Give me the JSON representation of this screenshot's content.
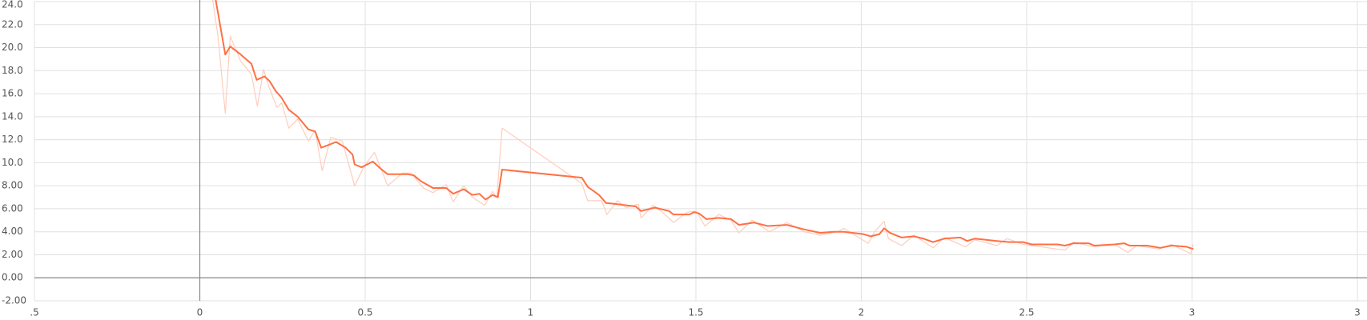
{
  "chart_data": {
    "type": "line",
    "xlim": [
      -0.5,
      3.5
    ],
    "xticks": [
      {
        "value": -0.5,
        "label": ".5"
      },
      0,
      0.5,
      1,
      1.5,
      2,
      2.5,
      3,
      {
        "value": 3.5,
        "label": "3"
      }
    ],
    "ylim": [
      -2,
      24
    ],
    "yticks": [
      {
        "value": 24,
        "label": "24.0"
      },
      {
        "value": 22,
        "label": "22.0"
      },
      {
        "value": 20,
        "label": "20.0"
      },
      {
        "value": 18,
        "label": "18.0"
      },
      {
        "value": 16,
        "label": "16.0"
      },
      {
        "value": 14,
        "label": "14.0"
      },
      {
        "value": 12,
        "label": "12.0"
      },
      {
        "value": 10,
        "label": "10.0"
      },
      {
        "value": 8,
        "label": "8.00"
      },
      {
        "value": 6,
        "label": "6.00"
      },
      {
        "value": 4,
        "label": "4.00"
      },
      {
        "value": 2,
        "label": "2.00"
      },
      {
        "value": 0,
        "label": "0.00"
      },
      {
        "value": -2,
        "label": "-2.00"
      }
    ],
    "grid": true,
    "series": [
      {
        "color": "#ffcdbd",
        "width": 1.2,
        "x": [
          0.032,
          0.055,
          0.077,
          0.092,
          0.124,
          0.156,
          0.174,
          0.193,
          0.209,
          0.233,
          0.248,
          0.269,
          0.296,
          0.328,
          0.349,
          0.37,
          0.396,
          0.431,
          0.468,
          0.497,
          0.528,
          0.568,
          0.613,
          0.639,
          0.676,
          0.705,
          0.745,
          0.766,
          0.798,
          0.824,
          0.861,
          0.885,
          0.898,
          0.914,
          1.155,
          1.173,
          1.215,
          1.231,
          1.263,
          1.289,
          1.326,
          1.334,
          1.371,
          1.403,
          1.432,
          1.474,
          1.501,
          1.527,
          1.569,
          1.606,
          1.63,
          1.67,
          1.722,
          1.775,
          1.828,
          1.876,
          1.929,
          1.947,
          2.021,
          2.04,
          2.069,
          2.082,
          2.122,
          2.159,
          2.217,
          2.251,
          2.315,
          2.344,
          2.41,
          2.441,
          2.489,
          2.616,
          2.642,
          2.7,
          2.766,
          2.806,
          2.832,
          2.899,
          2.938,
          2.996,
          3.004
        ],
        "values": [
          25.5,
          21.0,
          14.3,
          21.0,
          18.8,
          17.7,
          14.9,
          18.1,
          16.6,
          14.8,
          15.2,
          13.0,
          13.8,
          11.9,
          12.8,
          9.3,
          12.2,
          11.9,
          8.0,
          9.7,
          10.9,
          8.0,
          9.1,
          9.1,
          7.8,
          7.4,
          8.1,
          6.6,
          8.0,
          7.0,
          6.3,
          7.5,
          7.0,
          13.0,
          8.2,
          6.7,
          6.7,
          5.5,
          6.7,
          6.1,
          6.4,
          5.2,
          6.3,
          5.6,
          4.8,
          5.7,
          5.8,
          4.5,
          5.5,
          5.0,
          3.9,
          5.0,
          4.0,
          4.8,
          4.0,
          3.7,
          4.0,
          4.3,
          3.0,
          4.0,
          4.9,
          3.4,
          2.8,
          3.7,
          2.6,
          3.5,
          2.7,
          3.3,
          2.8,
          3.4,
          2.9,
          2.4,
          3.1,
          2.7,
          2.9,
          2.2,
          2.8,
          2.5,
          2.9,
          2.1,
          2.9
        ]
      },
      {
        "color": "#ff7043",
        "width": 2,
        "x": [
          0.04,
          0.052,
          0.077,
          0.092,
          0.124,
          0.156,
          0.172,
          0.196,
          0.211,
          0.23,
          0.246,
          0.269,
          0.296,
          0.328,
          0.349,
          0.367,
          0.412,
          0.441,
          0.462,
          0.468,
          0.489,
          0.523,
          0.55,
          0.568,
          0.608,
          0.629,
          0.647,
          0.668,
          0.705,
          0.745,
          0.766,
          0.798,
          0.824,
          0.845,
          0.864,
          0.885,
          0.901,
          0.914,
          1.155,
          1.173,
          1.207,
          1.228,
          1.263,
          1.289,
          1.318,
          1.334,
          1.376,
          1.419,
          1.432,
          1.48,
          1.495,
          1.509,
          1.532,
          1.569,
          1.606,
          1.63,
          1.675,
          1.717,
          1.775,
          1.828,
          1.876,
          1.915,
          1.947,
          2.005,
          2.029,
          2.055,
          2.069,
          2.087,
          2.122,
          2.159,
          2.188,
          2.217,
          2.251,
          2.299,
          2.32,
          2.343,
          2.41,
          2.449,
          2.489,
          2.515,
          2.594,
          2.616,
          2.642,
          2.687,
          2.705,
          2.766,
          2.795,
          2.811,
          2.864,
          2.904,
          2.938,
          2.983,
          3.004
        ],
        "values": [
          25.5,
          23.5,
          19.4,
          20.1,
          19.4,
          18.6,
          17.2,
          17.5,
          17.1,
          16.2,
          15.7,
          14.6,
          14.0,
          12.9,
          12.7,
          11.3,
          11.8,
          11.3,
          10.7,
          9.85,
          9.6,
          10.1,
          9.4,
          9.0,
          9.0,
          9.0,
          8.9,
          8.4,
          7.8,
          7.8,
          7.3,
          7.7,
          7.2,
          7.3,
          6.8,
          7.2,
          7.0,
          9.4,
          8.7,
          7.9,
          7.2,
          6.5,
          6.4,
          6.3,
          6.2,
          5.8,
          6.1,
          5.8,
          5.5,
          5.5,
          5.7,
          5.6,
          5.1,
          5.2,
          5.1,
          4.6,
          4.8,
          4.5,
          4.6,
          4.2,
          3.9,
          4.0,
          4.0,
          3.8,
          3.6,
          3.8,
          4.3,
          3.9,
          3.5,
          3.6,
          3.4,
          3.1,
          3.4,
          3.5,
          3.2,
          3.4,
          3.2,
          3.1,
          3.1,
          2.9,
          2.9,
          2.8,
          3.0,
          3.0,
          2.8,
          2.9,
          3.0,
          2.8,
          2.8,
          2.6,
          2.8,
          2.7,
          2.5
        ]
      }
    ]
  }
}
